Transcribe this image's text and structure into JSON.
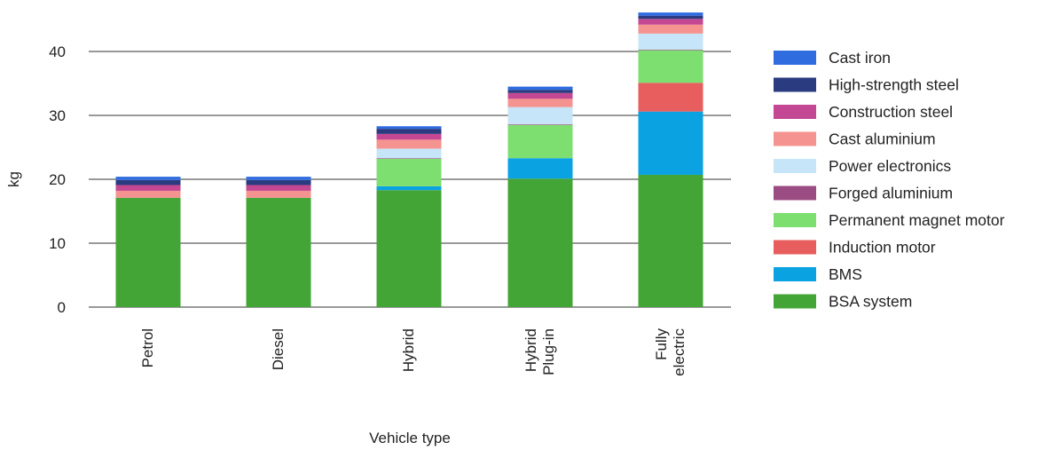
{
  "chart_data": {
    "type": "bar",
    "stacked": true,
    "title": "",
    "xlabel": "Vehicle type",
    "ylabel": "kg",
    "ylim": [
      0,
      46
    ],
    "yticks": [
      0,
      10,
      20,
      30,
      40
    ],
    "grid": true,
    "legend_position": "right",
    "categories": [
      [
        "Petrol"
      ],
      [
        "Diesel"
      ],
      [
        "Hybrid"
      ],
      [
        "Hybrid",
        "Plug-in"
      ],
      [
        "Fully",
        "electric"
      ]
    ],
    "series": [
      {
        "name": "BSA system",
        "color": "#43a535",
        "values": [
          17.1,
          17.1,
          18.3,
          20.1,
          20.7
        ]
      },
      {
        "name": "BMS",
        "color": "#0aa2e1",
        "values": [
          0,
          0,
          0.6,
          3.2,
          9.9
        ]
      },
      {
        "name": "Induction motor",
        "color": "#e85d5d",
        "values": [
          0,
          0,
          0,
          0,
          4.5
        ]
      },
      {
        "name": "Permanent magnet motor",
        "color": "#7edf71",
        "values": [
          0,
          0,
          4.3,
          5.2,
          5.1
        ]
      },
      {
        "name": "Forged aluminium",
        "color": "#9b4c82",
        "values": [
          0,
          0,
          0.1,
          0.1,
          0.1
        ]
      },
      {
        "name": "Power electronics",
        "color": "#c6e5f8",
        "values": [
          0,
          0,
          1.5,
          2.7,
          2.5
        ]
      },
      {
        "name": "Cast aluminium",
        "color": "#f4938f",
        "values": [
          1.1,
          1.1,
          1.4,
          1.3,
          1.4
        ]
      },
      {
        "name": "Construction steel",
        "color": "#c34792",
        "values": [
          0.9,
          0.9,
          0.9,
          0.9,
          0.9
        ]
      },
      {
        "name": "High-strength steel",
        "color": "#2a3b80",
        "values": [
          0.8,
          0.8,
          0.8,
          0.5,
          0.5
        ]
      },
      {
        "name": "Cast iron",
        "color": "#2f6ce0",
        "values": [
          0.5,
          0.5,
          0.4,
          0.5,
          0.5
        ]
      }
    ],
    "legend_order": [
      "Cast iron",
      "High-strength steel",
      "Construction steel",
      "Cast aluminium",
      "Power electronics",
      "Forged aluminium",
      "Permanent magnet motor",
      "Induction motor",
      "BMS",
      "BSA system"
    ]
  }
}
